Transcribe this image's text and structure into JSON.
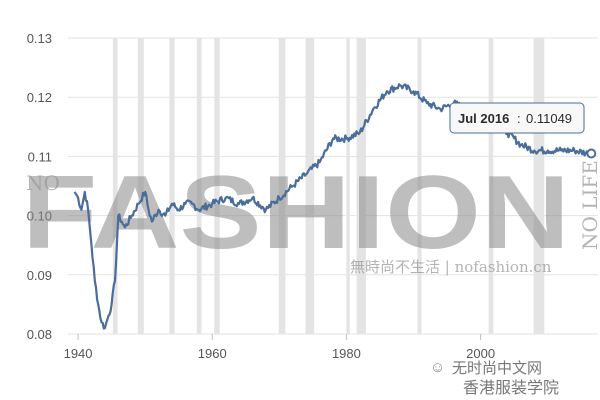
{
  "chart_data": {
    "type": "line",
    "xlim": [
      1938.5,
      2017.5
    ],
    "ylim": [
      0.08,
      0.13
    ],
    "x_ticks": [
      "1940",
      "1960",
      "1980",
      "2000"
    ],
    "y_ticks": [
      "0.13",
      "0.12",
      "0.11",
      "0.10",
      "0.09",
      "0.08"
    ],
    "grid": "horizontal gridlines",
    "line_color": "#4a6d9b",
    "shaded_band_color": "#e4e4e4",
    "recession_bands": [
      [
        1945.2,
        1945.9
      ],
      [
        1948.9,
        1949.8
      ],
      [
        1953.6,
        1954.4
      ],
      [
        1957.7,
        1958.4
      ],
      [
        1960.3,
        1961.1
      ],
      [
        1969.9,
        1970.9
      ],
      [
        1973.9,
        1975.2
      ],
      [
        1980.0,
        1980.5
      ],
      [
        1981.5,
        1982.9
      ],
      [
        1990.6,
        1991.2
      ],
      [
        2001.2,
        2001.9
      ],
      [
        2007.9,
        2009.5
      ]
    ],
    "series": [
      {
        "points": [
          [
            1939.5,
            0.104
          ],
          [
            1940.0,
            0.103
          ],
          [
            1940.5,
            0.101
          ],
          [
            1941.0,
            0.104
          ],
          [
            1941.5,
            0.101
          ],
          [
            1942.0,
            0.095
          ],
          [
            1942.5,
            0.089
          ],
          [
            1943.0,
            0.085
          ],
          [
            1943.5,
            0.082
          ],
          [
            1944.0,
            0.081
          ],
          [
            1944.5,
            0.083
          ],
          [
            1945.0,
            0.085
          ],
          [
            1945.5,
            0.089
          ],
          [
            1946.0,
            0.1
          ],
          [
            1946.5,
            0.099
          ],
          [
            1947.0,
            0.098
          ],
          [
            1948.0,
            0.1
          ],
          [
            1949.0,
            0.102
          ],
          [
            1950.0,
            0.104
          ],
          [
            1950.5,
            0.101
          ],
          [
            1951.0,
            0.099
          ],
          [
            1952.0,
            0.101
          ],
          [
            1953.0,
            0.1
          ],
          [
            1954.0,
            0.102
          ],
          [
            1955.0,
            0.101
          ],
          [
            1956.0,
            0.102
          ],
          [
            1957.0,
            0.102
          ],
          [
            1958.0,
            0.101
          ],
          [
            1960.0,
            0.102
          ],
          [
            1962.0,
            0.103
          ],
          [
            1964.0,
            0.102
          ],
          [
            1966.0,
            0.103
          ],
          [
            1968.0,
            0.101
          ],
          [
            1970.0,
            0.103
          ],
          [
            1972.0,
            0.105
          ],
          [
            1974.0,
            0.107
          ],
          [
            1976.0,
            0.109
          ],
          [
            1978.0,
            0.113
          ],
          [
            1980.0,
            0.113
          ],
          [
            1982.0,
            0.114
          ],
          [
            1984.0,
            0.118
          ],
          [
            1986.0,
            0.121
          ],
          [
            1988.0,
            0.122
          ],
          [
            1990.0,
            0.121
          ],
          [
            1992.0,
            0.119
          ],
          [
            1994.0,
            0.118
          ],
          [
            1996.0,
            0.119
          ],
          [
            1998.0,
            0.118
          ],
          [
            2000.0,
            0.117
          ],
          [
            2002.0,
            0.116
          ],
          [
            2004.0,
            0.114
          ],
          [
            2006.0,
            0.112
          ],
          [
            2008.0,
            0.111
          ],
          [
            2010.0,
            0.111
          ],
          [
            2012.0,
            0.111
          ],
          [
            2014.0,
            0.111
          ],
          [
            2016.0,
            0.1105
          ],
          [
            2016.5,
            0.11049
          ]
        ]
      }
    ],
    "tooltip": {
      "date": "Jul 2016",
      "value": "0.11049"
    }
  },
  "watermarks": {
    "big": "FASHION",
    "left_vertical": "NO",
    "right_vertical": "NO LIFE",
    "chinese": "無時尚不生活 | nofashion.cn",
    "footer_top": "无时尚中文网",
    "footer_bottom": "香港服装学院"
  }
}
